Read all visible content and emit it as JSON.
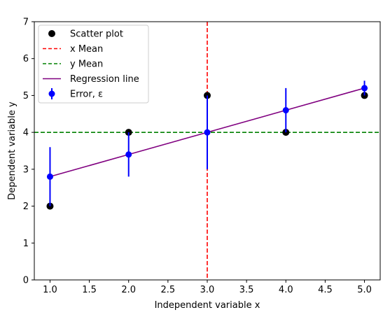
{
  "chart_data": {
    "type": "scatter",
    "title": "",
    "xlabel": "Independent variable x",
    "ylabel": "Dependent variable  y",
    "xlim": [
      0.8,
      5.2
    ],
    "ylim": [
      0,
      7
    ],
    "xticks": [
      1.0,
      1.5,
      2.0,
      2.5,
      3.0,
      3.5,
      4.0,
      4.5,
      5.0
    ],
    "xtick_labels": [
      "1.0",
      "1.5",
      "2.0",
      "2.5",
      "3.0",
      "3.5",
      "4.0",
      "4.5",
      "5.0"
    ],
    "yticks": [
      0,
      1,
      2,
      3,
      4,
      5,
      6,
      7
    ],
    "ytick_labels": [
      "0",
      "1",
      "2",
      "3",
      "4",
      "5",
      "6",
      "7"
    ],
    "grid": false,
    "legend_position": "upper-left",
    "series": [
      {
        "name": "Scatter plot",
        "kind": "points",
        "color": "#000000",
        "x": [
          1,
          2,
          3,
          4,
          5
        ],
        "y": [
          2,
          4,
          5,
          4,
          5
        ]
      },
      {
        "name": "x Mean",
        "kind": "vline",
        "color": "#ff0000",
        "dash": true,
        "x": 3.0
      },
      {
        "name": "y Mean",
        "kind": "hline",
        "color": "#008000",
        "dash": true,
        "y": 4.0
      },
      {
        "name": "Regression line",
        "kind": "line",
        "color": "#800080",
        "x": [
          1,
          2,
          3,
          4,
          5
        ],
        "y": [
          2.8,
          3.4,
          4.0,
          4.6,
          5.2
        ]
      },
      {
        "name": "Error,  ε",
        "kind": "errorbar",
        "color": "#0000ff",
        "x": [
          1,
          2,
          3,
          4,
          5
        ],
        "y": [
          2.8,
          3.4,
          4.0,
          4.6,
          5.2
        ],
        "err": [
          0.8,
          0.6,
          1.0,
          0.6,
          0.2
        ]
      }
    ]
  }
}
